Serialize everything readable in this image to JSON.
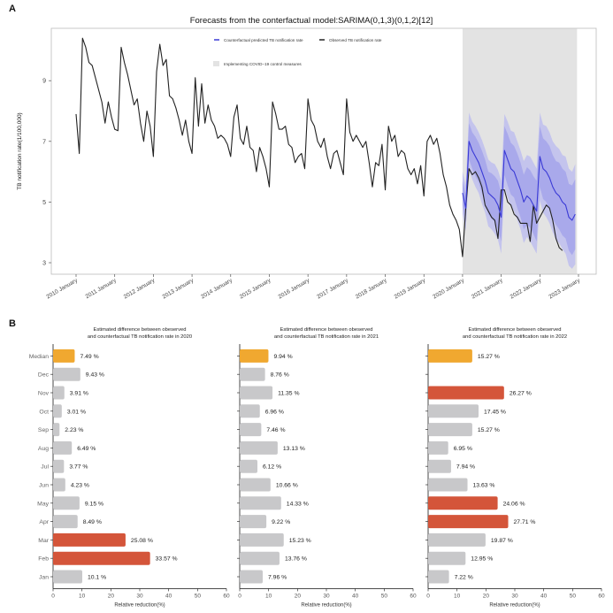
{
  "chart_data": [
    {
      "panel": "A",
      "type": "line",
      "title": "Forecasts from the conterfactual model:SARIMA(0,1,3)(0,1,2)[12]",
      "xlabel": "",
      "ylabel": "TB notification rate(1/100,000)",
      "ylim": [
        2.8,
        10.8
      ],
      "yticks": [
        3,
        5,
        7,
        9
      ],
      "xticks": [
        "2010 January",
        "2011 January",
        "2012 January",
        "2013 January",
        "2014 January",
        "2015 January",
        "2016 January",
        "2017 January",
        "2018 January",
        "2019 January",
        "2020 January",
        "2021 January",
        "2022 January",
        "2023 January"
      ],
      "x_start": "2010-01",
      "grid": false,
      "legend": {
        "position": "top-center",
        "entries": [
          {
            "label": "Counterfactual predicted TB notification rate",
            "color": "#3a3ad6"
          },
          {
            "label": "Observed TB notification rate",
            "color": "#222222"
          },
          {
            "label": "Implementing COVID−19 control measures",
            "color": "#e3e3e3"
          }
        ]
      },
      "shaded_period": {
        "start": "2020-01",
        "end": "2022-12",
        "label": "Implementing COVID−19 control measures"
      },
      "series": [
        {
          "name": "Observed TB notification rate",
          "color": "#222222",
          "values": [
            7.9,
            6.6,
            10.4,
            10.1,
            9.6,
            9.5,
            9.1,
            8.7,
            8.3,
            7.6,
            8.3,
            7.8,
            7.4,
            7.35,
            10.1,
            9.6,
            9.2,
            8.7,
            8.2,
            8.4,
            7.6,
            7.0,
            8.0,
            7.5,
            6.5,
            9.3,
            10.2,
            9.5,
            9.7,
            8.5,
            8.4,
            8.1,
            7.7,
            7.2,
            7.7,
            7.0,
            6.6,
            9.1,
            7.5,
            8.9,
            7.6,
            8.2,
            7.7,
            7.5,
            7.1,
            7.2,
            7.1,
            6.9,
            6.5,
            7.8,
            8.2,
            7.1,
            6.9,
            7.5,
            6.8,
            6.7,
            6.0,
            6.8,
            6.5,
            6.1,
            5.5,
            8.3,
            7.9,
            7.4,
            7.4,
            7.5,
            6.9,
            6.8,
            6.3,
            6.5,
            6.6,
            6.1,
            8.4,
            7.7,
            7.5,
            7.0,
            6.8,
            7.1,
            6.5,
            6.1,
            6.6,
            6.7,
            6.3,
            5.9,
            8.4,
            7.3,
            7.0,
            7.2,
            7.0,
            6.8,
            7.0,
            6.3,
            5.5,
            6.3,
            6.2,
            6.9,
            5.4,
            7.5,
            7.0,
            7.2,
            6.5,
            6.7,
            6.6,
            6.1,
            5.9,
            6.1,
            5.6,
            6.2,
            5.2,
            7.0,
            7.2,
            6.9,
            7.1,
            6.6,
            5.9,
            5.5,
            4.9,
            4.6,
            4.4,
            4.1,
            3.2,
            4.8,
            6.1,
            5.9,
            6.0,
            5.8,
            5.5,
            4.9,
            4.7,
            4.5,
            4.4,
            3.8,
            5.4,
            5.4,
            5.0,
            4.9,
            4.6,
            4.5,
            4.3,
            4.3,
            4.3,
            3.7,
            4.9,
            4.3,
            4.5,
            4.7,
            4.9,
            4.8,
            4.4,
            3.8,
            3.5,
            3.4
          ]
        },
        {
          "name": "Counterfactual predicted TB notification rate",
          "color": "#3a3ad6",
          "start": "2020-01",
          "values": [
            5.3,
            4.8,
            7.0,
            6.7,
            6.5,
            6.3,
            6.0,
            5.7,
            5.3,
            5.2,
            5.1,
            4.9,
            4.5,
            6.7,
            6.4,
            6.1,
            6.0,
            5.7,
            5.4,
            5.0,
            5.2,
            5.1,
            4.9,
            4.7,
            6.5,
            6.1,
            6.0,
            5.8,
            5.5,
            5.3,
            5.2,
            5.0,
            4.9,
            4.5,
            4.4,
            4.6
          ],
          "ci80_halfwidth": [
            0.4,
            0.45,
            0.6,
            0.6,
            0.65,
            0.65,
            0.7,
            0.7,
            0.7,
            0.75,
            0.75,
            0.8,
            0.8,
            0.8,
            0.85,
            0.85,
            0.85,
            0.9,
            0.9,
            0.9,
            0.95,
            0.95,
            0.95,
            1.0,
            1.0,
            1.0,
            1.0,
            1.05,
            1.05,
            1.05,
            1.1,
            1.1,
            1.1,
            1.1,
            1.15,
            1.15
          ],
          "ci95_halfwidth": [
            0.7,
            0.75,
            0.95,
            0.95,
            1.0,
            1.0,
            1.05,
            1.05,
            1.1,
            1.1,
            1.15,
            1.15,
            1.2,
            1.2,
            1.25,
            1.25,
            1.3,
            1.3,
            1.3,
            1.35,
            1.35,
            1.4,
            1.4,
            1.4,
            1.45,
            1.45,
            1.5,
            1.5,
            1.5,
            1.55,
            1.55,
            1.55,
            1.6,
            1.6,
            1.6,
            1.65
          ]
        }
      ]
    },
    {
      "panel": "B",
      "type": "bar",
      "orientation": "horizontal",
      "xlabel": "Relative reduction(%)",
      "xlim": [
        0,
        60
      ],
      "xticks": [
        0,
        10,
        20,
        30,
        40,
        50,
        60
      ],
      "categories": [
        "Median",
        "Dec",
        "Nov",
        "Oct",
        "Sep",
        "Aug",
        "Jul",
        "Jun",
        "May",
        "Apr",
        "Mar",
        "Feb",
        "Jan"
      ],
      "colors": {
        "median": "#f0a830",
        "highlight": "#d4553a",
        "normal": "#c8c8ca"
      },
      "subplots": [
        {
          "title_line1": "Estimated difference between obeserved",
          "title_line2": "and counterfactual TB notification rate in 2020",
          "values": [
            7.49,
            9.43,
            3.91,
            3.01,
            2.23,
            6.49,
            3.77,
            4.23,
            9.15,
            8.49,
            25.08,
            33.57,
            10.1
          ],
          "labels": [
            "7.49 %",
            "9.43 %",
            "3.91 %",
            "3.01 %",
            "2.23 %",
            "6.49 %",
            "3.77 %",
            "4.23 %",
            "9.15 %",
            "8.49 %",
            "25.08 %",
            "33.57 %",
            "10.1 %"
          ],
          "kinds": [
            "median",
            "normal",
            "normal",
            "normal",
            "normal",
            "normal",
            "normal",
            "normal",
            "normal",
            "normal",
            "highlight",
            "highlight",
            "normal"
          ]
        },
        {
          "title_line1": "Estimated difference between obeserved",
          "title_line2": "and counterfactual TB notification rate in 2021",
          "values": [
            9.94,
            8.76,
            11.35,
            6.96,
            7.46,
            13.13,
            6.12,
            10.66,
            14.33,
            9.22,
            15.23,
            13.76,
            7.96
          ],
          "labels": [
            "9.94 %",
            "8.76 %",
            "11.35 %",
            "6.96 %",
            "7.46 %",
            "13.13 %",
            "6.12 %",
            "10.66 %",
            "14.33 %",
            "9.22 %",
            "15.23 %",
            "13.76 %",
            "7.96 %"
          ],
          "kinds": [
            "median",
            "normal",
            "normal",
            "normal",
            "normal",
            "normal",
            "normal",
            "normal",
            "normal",
            "normal",
            "normal",
            "normal",
            "normal"
          ]
        },
        {
          "title_line1": "Estimated difference between obeserved",
          "title_line2": "and counterfactual TB notification rate in 2022",
          "values": [
            15.27,
            null,
            26.27,
            17.45,
            15.27,
            6.95,
            7.94,
            13.63,
            24.06,
            27.71,
            19.87,
            12.95,
            7.22
          ],
          "labels": [
            "15.27 %",
            "",
            "26.27 %",
            "17.45 %",
            "15.27 %",
            "6.95 %",
            "7.94 %",
            "13.63 %",
            "24.06 %",
            "27.71 %",
            "19.87 %",
            "12.95 %",
            "7.22 %"
          ],
          "kinds": [
            "median",
            "normal",
            "highlight",
            "normal",
            "normal",
            "normal",
            "normal",
            "normal",
            "highlight",
            "highlight",
            "normal",
            "normal",
            "normal"
          ]
        }
      ]
    }
  ],
  "panel_labels": {
    "a": "A",
    "b": "B"
  }
}
